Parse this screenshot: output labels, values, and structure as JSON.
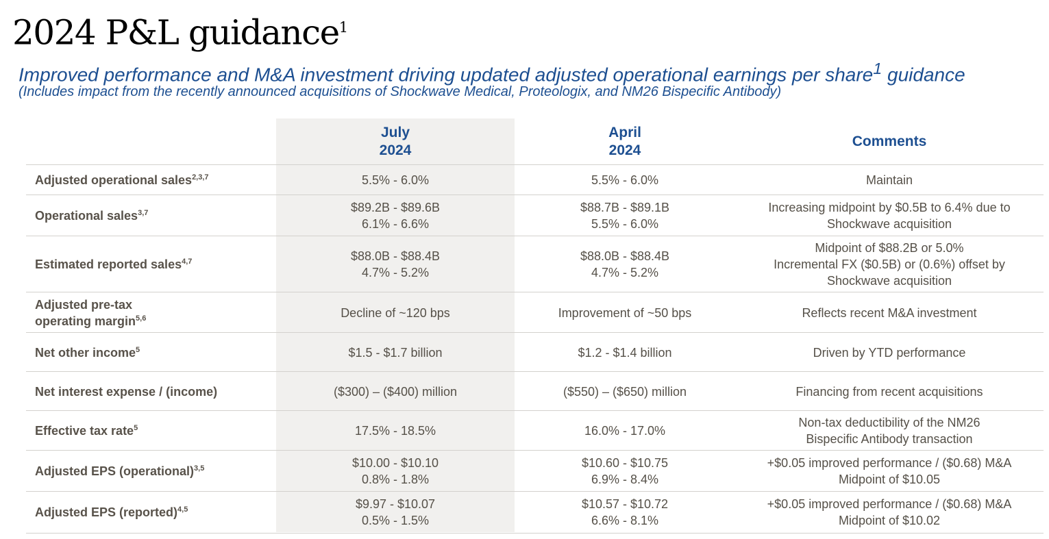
{
  "page": {
    "title": "2024 P&L guidance",
    "title_footnote": "1",
    "subtitle": "Improved performance and M&A investment driving updated adjusted operational earnings per share",
    "subtitle_footnote": "1",
    "subtitle_end": " guidance",
    "subtitle2": "(Includes impact from the recently announced acquisitions of Shockwave Medical, Proteologix, and NM26 Bispecific Antibody)"
  },
  "table": {
    "headers": {
      "july_line1": "July",
      "july_line2": "2024",
      "april_line1": "April",
      "april_line2": "2024",
      "comments": "Comments"
    },
    "rows": [
      {
        "label": "Adjusted operational sales",
        "fn": "2,3,7",
        "july": [
          "5.5% - 6.0%"
        ],
        "april": [
          "5.5% - 6.0%"
        ],
        "comment": [
          "Maintain"
        ]
      },
      {
        "label": "Operational sales",
        "fn": "3,7",
        "july": [
          "$89.2B - $89.6B",
          "6.1% - 6.6%"
        ],
        "april": [
          "$88.7B - $89.1B",
          "5.5% - 6.0%"
        ],
        "comment": [
          "Increasing midpoint by $0.5B to 6.4% due to",
          "Shockwave acquisition"
        ]
      },
      {
        "label": "Estimated reported sales",
        "fn": "4,7",
        "july": [
          "$88.0B - $88.4B",
          "4.7% - 5.2%"
        ],
        "april": [
          "$88.0B - $88.4B",
          "4.7% - 5.2%"
        ],
        "comment": [
          "Midpoint of $88.2B or 5.0%",
          "Incremental FX ($0.5B) or (0.6%) offset by",
          "Shockwave acquisition"
        ]
      },
      {
        "label": "Adjusted pre-tax",
        "label2": "operating margin",
        "fn": "5,6",
        "july": [
          "Decline of ~120 bps"
        ],
        "april": [
          "Improvement of ~50 bps"
        ],
        "comment": [
          "Reflects recent M&A investment"
        ]
      },
      {
        "label": "Net other income",
        "fn": "5",
        "july": [
          "$1.5 - $1.7 billion"
        ],
        "april": [
          "$1.2 - $1.4 billion"
        ],
        "comment": [
          "Driven by YTD performance"
        ]
      },
      {
        "label": "Net interest expense / (income)",
        "fn": "",
        "july": [
          "($300) – ($400) million"
        ],
        "april": [
          "($550) – ($650) million"
        ],
        "comment": [
          "Financing from recent acquisitions"
        ]
      },
      {
        "label": "Effective tax rate",
        "fn": "5",
        "july": [
          "17.5% - 18.5%"
        ],
        "april": [
          "16.0% - 17.0%"
        ],
        "comment": [
          "Non-tax deductibility of the NM26",
          "Bispecific Antibody transaction"
        ]
      },
      {
        "label": "Adjusted EPS (operational)",
        "fn": "3,5",
        "july": [
          "$10.00 - $10.10",
          "0.8% - 1.8%"
        ],
        "april": [
          "$10.60 - $10.75",
          "6.9% - 8.4%"
        ],
        "comment": [
          "+$0.05 improved performance / ($0.68) M&A",
          "Midpoint of $10.05"
        ]
      },
      {
        "label": "Adjusted EPS (reported)",
        "fn": "4,5",
        "july": [
          "$9.97 - $10.07",
          "0.5% - 1.5%"
        ],
        "april": [
          "$10.57 - $10.72",
          "6.6% - 8.1%"
        ],
        "comment": [
          "+$0.05 improved performance / ($0.68) M&A",
          "Midpoint of $10.02"
        ]
      }
    ]
  }
}
